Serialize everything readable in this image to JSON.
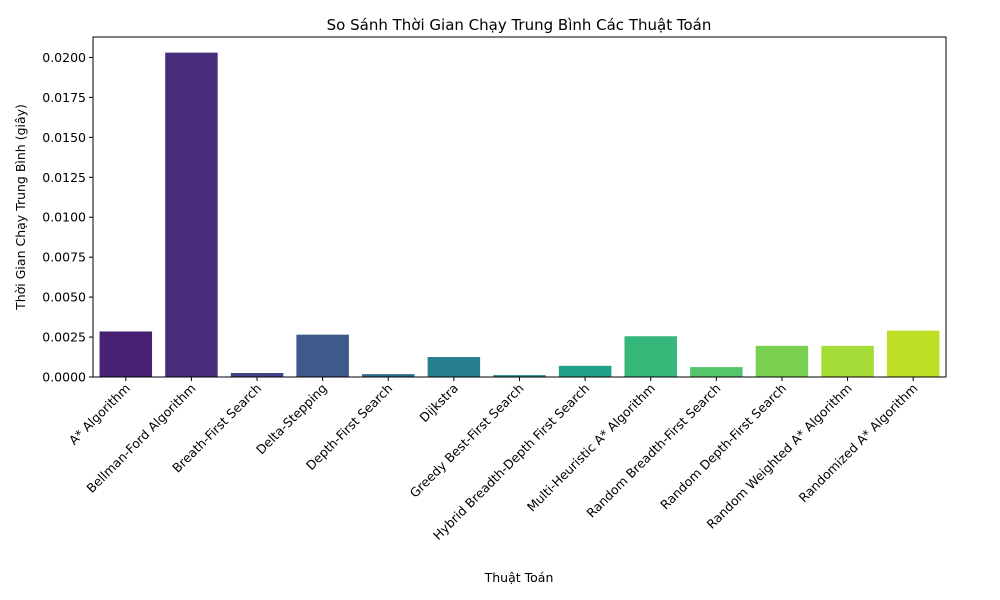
{
  "chart_data": {
    "type": "bar",
    "title": "So Sánh Thời Gian Chạy Trung Bình Các Thuật Toán",
    "xlabel": "Thuật Toán",
    "ylabel": "Thời Gian Chạy Trung Bình (giây)",
    "ylim": [
      0,
      0.02128
    ],
    "yticks": [
      "0.0000",
      "0.0025",
      "0.0050",
      "0.0075",
      "0.0100",
      "0.0125",
      "0.0150",
      "0.0175",
      "0.0200"
    ],
    "grid": false,
    "categories": [
      "A* Algorithm",
      "Bellman-Ford Algorithm",
      "Breath-First Search",
      "Delta-Stepping",
      "Depth-First Search",
      "Dijkstra",
      "Greedy Best-First Search",
      "Hybrid Breadth-Depth First Search",
      "Multi-Heuristic A* Algorithm",
      "Random Breadth-First Search",
      "Random Depth-First Search",
      "Random Weighted A* Algorithm",
      "Randomized A* Algorithm"
    ],
    "values": [
      0.00285,
      0.0203,
      0.00025,
      0.00265,
      0.00018,
      0.00125,
      0.00012,
      0.0007,
      0.00255,
      0.00062,
      0.00195,
      0.00195,
      0.0029
    ],
    "colors": [
      "#482173",
      "#472d7b",
      "#414487",
      "#3e5a8a",
      "#2e6f8e",
      "#277f8e",
      "#21918c",
      "#1fa187",
      "#35b779",
      "#54c568",
      "#7ad151",
      "#a5db36",
      "#bddf26"
    ]
  }
}
